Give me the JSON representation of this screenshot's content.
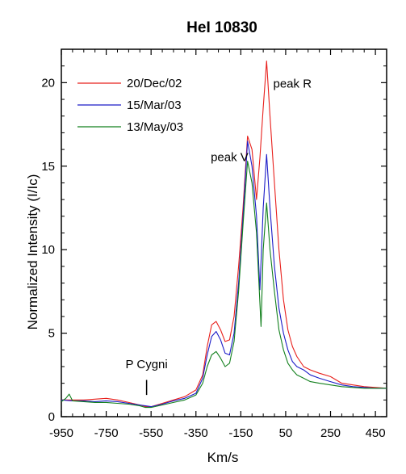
{
  "chart_data": {
    "type": "line",
    "title": "HeI 10830",
    "xlabel": "Km/s",
    "ylabel": "Normalized Intensity  (I/Ic)",
    "xlim": [
      -950,
      500
    ],
    "ylim": [
      0,
      22
    ],
    "xticks": [
      -950,
      -750,
      -550,
      -350,
      -150,
      50,
      250,
      450
    ],
    "yticks": [
      0,
      5,
      10,
      15,
      20
    ],
    "grid": false,
    "legend_position": "top-left",
    "annotations": [
      {
        "text": "peak R",
        "x": 80,
        "y": 19.7
      },
      {
        "text": "peak V",
        "x": -200,
        "y": 15.3
      },
      {
        "text": "P Cygni",
        "x": -570,
        "y": 2.9,
        "marker_x": -570,
        "marker_y": [
          1.3,
          2.2
        ]
      }
    ],
    "series": [
      {
        "name": "20/Dec/02",
        "color": "#e8201c",
        "x": [
          -950,
          -900,
          -850,
          -800,
          -750,
          -700,
          -650,
          -600,
          -575,
          -550,
          -500,
          -450,
          -400,
          -350,
          -320,
          -300,
          -280,
          -260,
          -240,
          -220,
          -200,
          -180,
          -160,
          -140,
          -120,
          -100,
          -80,
          -65,
          -50,
          -35,
          -20,
          0,
          20,
          40,
          60,
          80,
          100,
          130,
          160,
          200,
          250,
          300,
          350,
          400,
          450,
          500
        ],
        "values": [
          1.0,
          1.0,
          1.0,
          1.05,
          1.1,
          1.0,
          0.85,
          0.7,
          0.6,
          0.6,
          0.8,
          1.0,
          1.2,
          1.6,
          2.5,
          4.2,
          5.5,
          5.7,
          5.2,
          4.5,
          4.6,
          6.0,
          9.0,
          12.5,
          16.8,
          16.0,
          13.0,
          15.5,
          18.5,
          21.3,
          18.0,
          14.0,
          10.0,
          7.0,
          5.2,
          4.2,
          3.6,
          3.0,
          2.8,
          2.6,
          2.4,
          2.0,
          1.9,
          1.8,
          1.75,
          1.7
        ]
      },
      {
        "name": "15/Mar/03",
        "color": "#1c1cc8",
        "x": [
          -950,
          -900,
          -850,
          -800,
          -750,
          -700,
          -650,
          -600,
          -575,
          -550,
          -500,
          -450,
          -400,
          -350,
          -320,
          -300,
          -280,
          -260,
          -240,
          -220,
          -200,
          -180,
          -160,
          -140,
          -120,
          -100,
          -80,
          -65,
          -50,
          -35,
          -20,
          0,
          20,
          40,
          60,
          80,
          100,
          130,
          160,
          200,
          250,
          300,
          350,
          400,
          450,
          500
        ],
        "values": [
          1.0,
          0.95,
          0.95,
          0.9,
          0.95,
          0.9,
          0.8,
          0.7,
          0.65,
          0.6,
          0.75,
          0.95,
          1.1,
          1.4,
          2.3,
          3.7,
          4.8,
          5.1,
          4.6,
          3.8,
          3.7,
          5.0,
          8.0,
          12.0,
          16.5,
          15.0,
          12.0,
          7.6,
          12.5,
          15.7,
          12.5,
          9.0,
          6.5,
          5.0,
          4.0,
          3.3,
          3.0,
          2.8,
          2.5,
          2.3,
          2.1,
          1.9,
          1.8,
          1.75,
          1.7,
          1.7
        ]
      },
      {
        "name": "13/May/03",
        "color": "#13801e",
        "x": [
          -950,
          -930,
          -915,
          -900,
          -850,
          -800,
          -750,
          -700,
          -650,
          -600,
          -575,
          -550,
          -500,
          -450,
          -400,
          -350,
          -320,
          -300,
          -280,
          -260,
          -240,
          -220,
          -200,
          -180,
          -160,
          -140,
          -120,
          -100,
          -80,
          -60,
          -50,
          -35,
          -20,
          0,
          20,
          40,
          60,
          80,
          100,
          130,
          160,
          200,
          250,
          300,
          350,
          400,
          450,
          500
        ],
        "values": [
          0.9,
          1.1,
          1.35,
          0.95,
          0.9,
          0.85,
          0.85,
          0.8,
          0.75,
          0.65,
          0.55,
          0.55,
          0.7,
          0.85,
          1.0,
          1.3,
          2.0,
          3.0,
          3.7,
          3.9,
          3.5,
          3.0,
          3.2,
          4.5,
          7.5,
          11.5,
          15.3,
          14.0,
          11.0,
          5.4,
          10.0,
          12.8,
          10.0,
          7.5,
          5.2,
          4.0,
          3.2,
          2.8,
          2.5,
          2.3,
          2.1,
          2.0,
          1.9,
          1.8,
          1.75,
          1.7,
          1.7,
          1.7
        ]
      }
    ]
  }
}
